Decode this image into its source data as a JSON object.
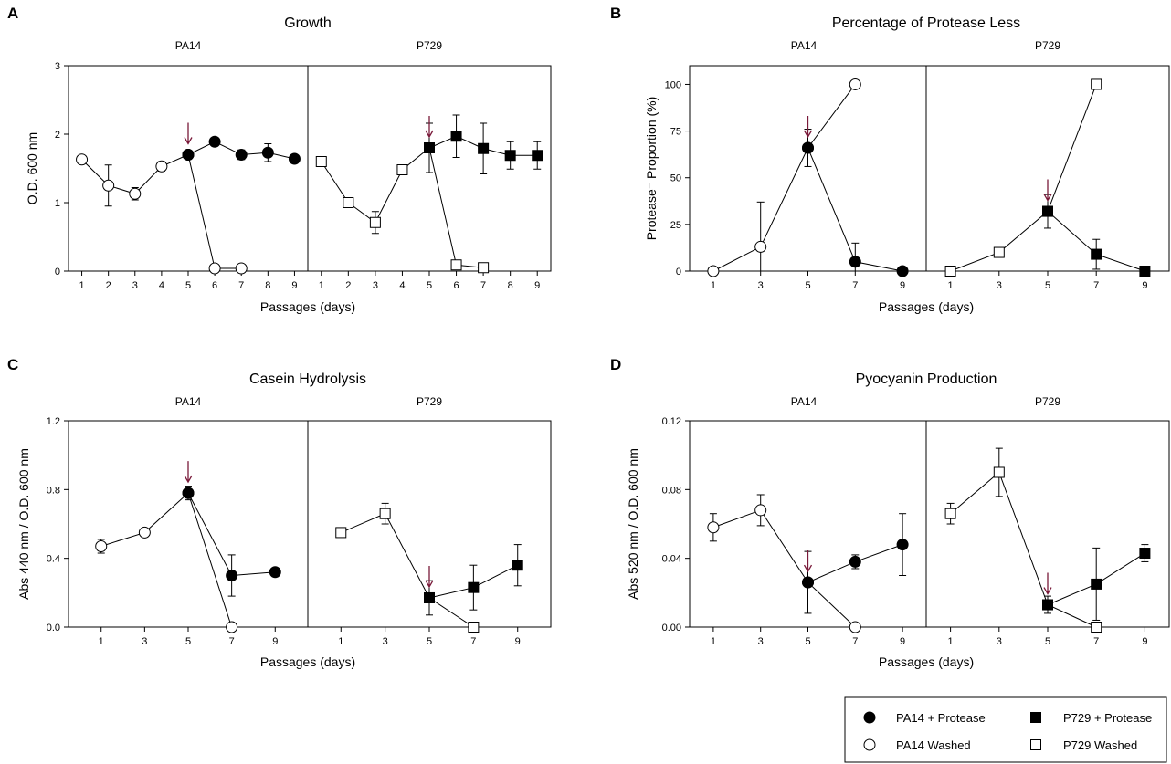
{
  "legend": {
    "pa14_protease": "PA14 + Protease",
    "p729_protease": "P729 + Protease",
    "pa14_washed": "PA14 Washed",
    "p729_washed": "P729 Washed"
  },
  "colors": {
    "ink": "#000000",
    "arrow": "#7a1a3a",
    "background": "#ffffff"
  },
  "chart_data": [
    {
      "panel": "A",
      "type": "line",
      "title": "Growth",
      "xlabel": "Passages (days)",
      "ylabel": "O.D. 600 nm",
      "ylim": [
        0,
        3
      ],
      "yticks": [
        0,
        1,
        2,
        3
      ],
      "ytick_labels": [
        "0",
        "1",
        "2",
        "3"
      ],
      "xticks": [
        1,
        2,
        3,
        4,
        5,
        6,
        7,
        8,
        9
      ],
      "xlim": [
        0.5,
        9.5
      ],
      "subpanels": [
        {
          "label": "PA14",
          "arrow_x": 5,
          "series": [
            {
              "name": "PA14 Washed",
              "marker": "circle",
              "filled": false,
              "points": [
                [
                  1,
                  1.63
                ],
                [
                  2,
                  1.25
                ],
                [
                  3,
                  1.13
                ],
                [
                  4,
                  1.53
                ],
                [
                  5,
                  1.7
                ]
              ],
              "errors": [
                0,
                0.3,
                0.09,
                0.07,
                0
              ]
            },
            {
              "name": "PA14 Washed",
              "marker": "circle",
              "filled": false,
              "points": [
                [
                  5,
                  1.7
                ],
                [
                  6,
                  0.04
                ],
                [
                  7,
                  0.04
                ]
              ],
              "errors": [
                0,
                0,
                0
              ]
            },
            {
              "name": "PA14 + Protease",
              "marker": "circle",
              "filled": true,
              "points": [
                [
                  5,
                  1.7
                ],
                [
                  6,
                  1.89
                ],
                [
                  7,
                  1.7
                ],
                [
                  8,
                  1.73
                ],
                [
                  9,
                  1.64
                ]
              ],
              "errors": [
                0,
                0,
                0.07,
                0.13,
                0
              ]
            }
          ]
        },
        {
          "label": "P729",
          "arrow_x": 5,
          "series": [
            {
              "name": "P729 Washed",
              "marker": "square",
              "filled": false,
              "points": [
                [
                  1,
                  1.6
                ],
                [
                  2,
                  1.0
                ],
                [
                  3,
                  0.71
                ],
                [
                  4,
                  1.48
                ],
                [
                  5,
                  1.8
                ]
              ],
              "errors": [
                0.06,
                0,
                0.16,
                0,
                0.36
              ]
            },
            {
              "name": "P729 Washed",
              "marker": "square",
              "filled": false,
              "points": [
                [
                  5,
                  1.8
                ],
                [
                  6,
                  0.09
                ],
                [
                  7,
                  0.05
                ]
              ],
              "errors": [
                0,
                0,
                0
              ]
            },
            {
              "name": "P729 + Protease",
              "marker": "square",
              "filled": true,
              "points": [
                [
                  5,
                  1.8
                ],
                [
                  6,
                  1.97
                ],
                [
                  7,
                  1.79
                ],
                [
                  8,
                  1.69
                ],
                [
                  9,
                  1.69
                ]
              ],
              "errors": [
                0,
                0.31,
                0.37,
                0.2,
                0.2
              ]
            }
          ]
        }
      ]
    },
    {
      "panel": "B",
      "type": "line",
      "title": "Percentage of Protease Less",
      "xlabel": "Passages (days)",
      "ylabel": "Protease⁻ Proportion (%)",
      "ylim": [
        0,
        110
      ],
      "yticks": [
        0,
        25,
        50,
        75,
        100
      ],
      "ytick_labels": [
        "0",
        "25",
        "50",
        "75",
        "100"
      ],
      "xticks": [
        1,
        3,
        5,
        7,
        9
      ],
      "xlim": [
        0,
        10
      ],
      "subpanels": [
        {
          "label": "PA14",
          "arrow_x": 5,
          "series": [
            {
              "name": "PA14 Washed",
              "marker": "circle",
              "filled": false,
              "points": [
                [
                  1,
                  0
                ],
                [
                  3,
                  13
                ],
                [
                  5,
                  66
                ],
                [
                  7,
                  100
                ]
              ],
              "errors": [
                0,
                24,
                10,
                0
              ]
            },
            {
              "name": "PA14 + Protease",
              "marker": "circle",
              "filled": true,
              "points": [
                [
                  5,
                  66
                ],
                [
                  7,
                  5
                ],
                [
                  9,
                  0
                ]
              ],
              "errors": [
                0,
                10,
                0
              ]
            }
          ]
        },
        {
          "label": "P729",
          "arrow_x": 5,
          "series": [
            {
              "name": "P729 Washed",
              "marker": "square",
              "filled": false,
              "points": [
                [
                  1,
                  0
                ],
                [
                  3,
                  10
                ],
                [
                  5,
                  32
                ],
                [
                  7,
                  100
                ]
              ],
              "errors": [
                0,
                0,
                9,
                0
              ]
            },
            {
              "name": "P729 + Protease",
              "marker": "square",
              "filled": true,
              "points": [
                [
                  5,
                  32
                ],
                [
                  7,
                  9
                ],
                [
                  9,
                  0
                ]
              ],
              "errors": [
                0,
                8,
                0
              ]
            }
          ]
        }
      ]
    },
    {
      "panel": "C",
      "type": "line",
      "title": "Casein Hydrolysis",
      "xlabel": "Passages (days)",
      "ylabel": "Abs 440 nm / O.D. 600 nm",
      "ylim": [
        0,
        1.2
      ],
      "yticks": [
        0,
        0.4,
        0.8,
        1.2
      ],
      "ytick_labels": [
        "0.0",
        "0.4",
        "0.8",
        "1.2"
      ],
      "xticks": [
        1,
        3,
        5,
        7,
        9
      ],
      "xlim": [
        -0.5,
        10.5
      ],
      "subpanels": [
        {
          "label": "PA14",
          "arrow_x": 5,
          "series": [
            {
              "name": "PA14 Washed",
              "marker": "circle",
              "filled": false,
              "points": [
                [
                  1,
                  0.47
                ],
                [
                  3,
                  0.55
                ],
                [
                  5,
                  0.78
                ],
                [
                  7,
                  0
                ]
              ],
              "errors": [
                0.04,
                0,
                0.04,
                0
              ]
            },
            {
              "name": "PA14 + Protease",
              "marker": "circle",
              "filled": true,
              "points": [
                [
                  5,
                  0.78
                ],
                [
                  7,
                  0.3
                ],
                [
                  9,
                  0.32
                ]
              ],
              "errors": [
                0,
                0.12,
                0
              ]
            }
          ]
        },
        {
          "label": "P729",
          "arrow_x": 5,
          "series": [
            {
              "name": "P729 Washed",
              "marker": "square",
              "filled": false,
              "points": [
                [
                  1,
                  0.55
                ],
                [
                  3,
                  0.66
                ],
                [
                  5,
                  0.17
                ],
                [
                  7,
                  0
                ]
              ],
              "errors": [
                0,
                0.06,
                0.1,
                0
              ]
            },
            {
              "name": "P729 + Protease",
              "marker": "square",
              "filled": true,
              "points": [
                [
                  5,
                  0.17
                ],
                [
                  7,
                  0.23
                ],
                [
                  9,
                  0.36
                ]
              ],
              "errors": [
                0,
                0.13,
                0.12
              ]
            }
          ]
        }
      ]
    },
    {
      "panel": "D",
      "type": "line",
      "title": "Pyocyanin Production",
      "xlabel": "Passages (days)",
      "ylabel": "Abs 520 nm / O.D. 600 nm",
      "ylim": [
        0,
        0.12
      ],
      "yticks": [
        0,
        0.04,
        0.08,
        0.12
      ],
      "ytick_labels": [
        "0.00",
        "0.04",
        "0.08",
        "0.12"
      ],
      "xticks": [
        1,
        3,
        5,
        7,
        9
      ],
      "xlim": [
        0,
        10
      ],
      "subpanels": [
        {
          "label": "PA14",
          "arrow_x": 5,
          "series": [
            {
              "name": "PA14 Washed",
              "marker": "circle",
              "filled": false,
              "points": [
                [
                  1,
                  0.058
                ],
                [
                  3,
                  0.068
                ],
                [
                  5,
                  0.026
                ],
                [
                  7,
                  0
                ]
              ],
              "errors": [
                0.008,
                0.009,
                0.018,
                0
              ]
            },
            {
              "name": "PA14 + Protease",
              "marker": "circle",
              "filled": true,
              "points": [
                [
                  5,
                  0.026
                ],
                [
                  7,
                  0.038
                ],
                [
                  9,
                  0.048
                ]
              ],
              "errors": [
                0,
                0.004,
                0.018
              ]
            }
          ]
        },
        {
          "label": "P729",
          "arrow_x": 5,
          "series": [
            {
              "name": "P729 Washed",
              "marker": "square",
              "filled": false,
              "points": [
                [
                  1,
                  0.066
                ],
                [
                  3,
                  0.09
                ],
                [
                  5,
                  0.013
                ],
                [
                  7,
                  0
                ]
              ],
              "errors": [
                0.006,
                0.014,
                0.005,
                0
              ]
            },
            {
              "name": "P729 + Protease",
              "marker": "square",
              "filled": true,
              "points": [
                [
                  5,
                  0.013
                ],
                [
                  7,
                  0.025
                ],
                [
                  9,
                  0.043
                ]
              ],
              "errors": [
                0,
                0.021,
                0.005
              ]
            }
          ]
        }
      ]
    }
  ]
}
